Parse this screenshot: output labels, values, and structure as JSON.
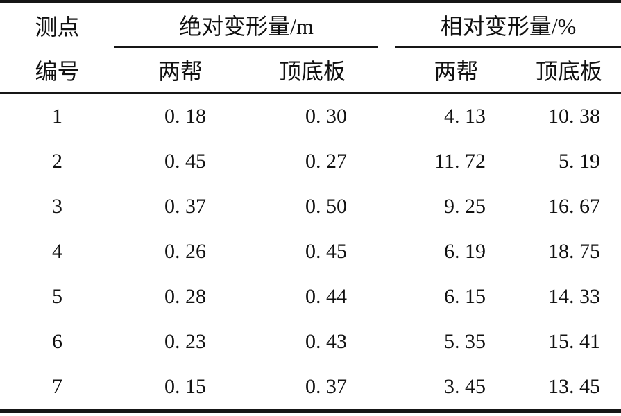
{
  "table": {
    "stub_header": {
      "line1": "测点",
      "line2": "编号"
    },
    "groups": [
      {
        "title": "绝对变形量/m",
        "sub": [
          "两帮",
          "顶底板"
        ]
      },
      {
        "title": "相对变形量/%",
        "sub": [
          "两帮",
          "顶底板"
        ]
      }
    ],
    "rows": [
      {
        "id": "1",
        "abs_sides": "0. 18",
        "abs_roof_floor": "0. 30",
        "rel_sides": "4. 13",
        "rel_roof_floor": "10. 38"
      },
      {
        "id": "2",
        "abs_sides": "0. 45",
        "abs_roof_floor": "0. 27",
        "rel_sides": "11. 72",
        "rel_roof_floor": "5. 19"
      },
      {
        "id": "3",
        "abs_sides": "0. 37",
        "abs_roof_floor": "0. 50",
        "rel_sides": "9. 25",
        "rel_roof_floor": "16. 67"
      },
      {
        "id": "4",
        "abs_sides": "0. 26",
        "abs_roof_floor": "0. 45",
        "rel_sides": "6. 19",
        "rel_roof_floor": "18. 75"
      },
      {
        "id": "5",
        "abs_sides": "0. 28",
        "abs_roof_floor": "0. 44",
        "rel_sides": "6. 15",
        "rel_roof_floor": "14. 33"
      },
      {
        "id": "6",
        "abs_sides": "0. 23",
        "abs_roof_floor": "0. 43",
        "rel_sides": "5. 35",
        "rel_roof_floor": "15. 41"
      },
      {
        "id": "7",
        "abs_sides": "0. 15",
        "abs_roof_floor": "0. 37",
        "rel_sides": "3. 45",
        "rel_roof_floor": "13. 45"
      }
    ],
    "colors": {
      "rule": "#161616",
      "text": "#111111",
      "background": "#ffffff"
    }
  },
  "chart_data": {
    "type": "table",
    "title": "",
    "columns": [
      "测点编号",
      "绝对变形量/m 两帮",
      "绝对变形量/m 顶底板",
      "相对变形量/% 两帮",
      "相对变形量/% 顶底板"
    ],
    "rows": [
      [
        1,
        0.18,
        0.3,
        4.13,
        10.38
      ],
      [
        2,
        0.45,
        0.27,
        11.72,
        5.19
      ],
      [
        3,
        0.37,
        0.5,
        9.25,
        16.67
      ],
      [
        4,
        0.26,
        0.45,
        6.19,
        18.75
      ],
      [
        5,
        0.28,
        0.44,
        6.15,
        14.33
      ],
      [
        6,
        0.23,
        0.43,
        5.35,
        15.41
      ],
      [
        7,
        0.15,
        0.37,
        3.45,
        13.45
      ]
    ]
  }
}
